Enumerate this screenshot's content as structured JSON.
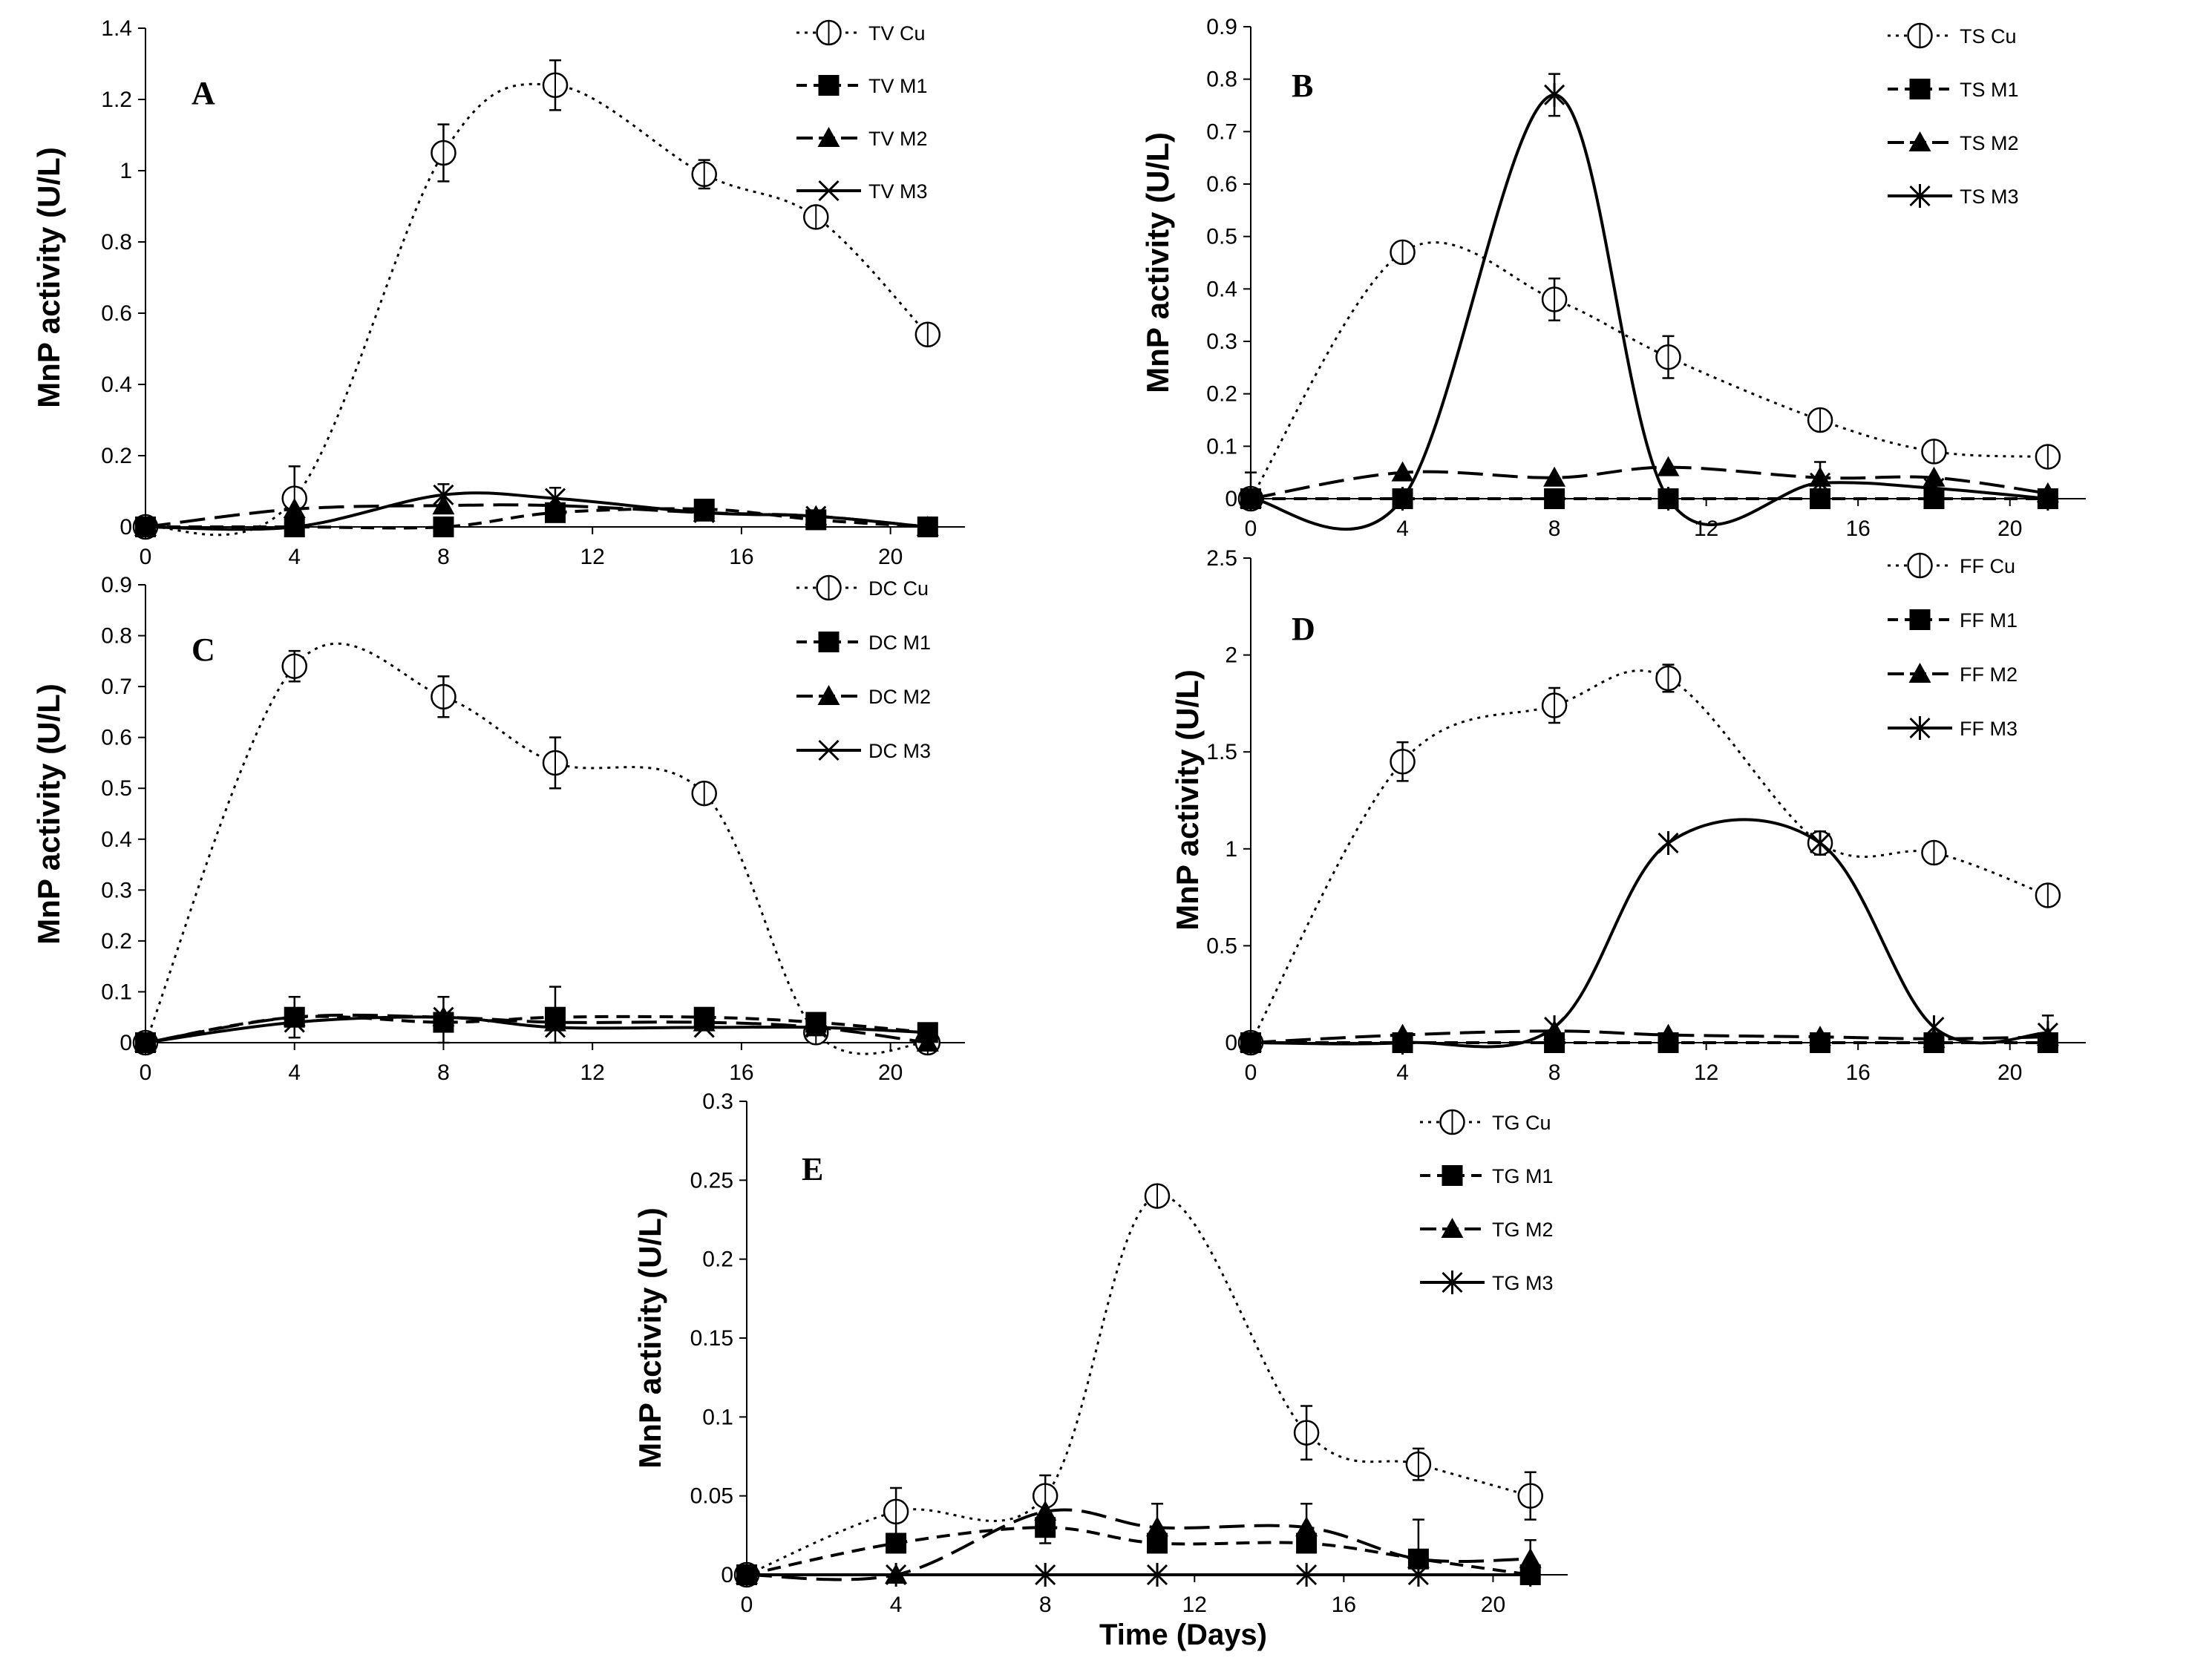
{
  "chart_data": [
    {
      "type": "line",
      "panel": "A",
      "ylabel": "MnP activity (U/L)",
      "xlabel": "",
      "xlim": [
        0,
        22
      ],
      "ylim": [
        0,
        1.4
      ],
      "xticks": [
        "0",
        "4",
        "8",
        "12",
        "16",
        "20"
      ],
      "yticks": [
        "0",
        "0.2",
        "0.4",
        "0.6",
        "0.8",
        "1",
        "1.2",
        "1.4"
      ],
      "x": [
        0,
        4,
        8,
        11,
        15,
        18,
        21
      ],
      "series": [
        {
          "name": "TV Cu",
          "style": "dotted",
          "marker": "circle",
          "values": [
            0,
            0.08,
            1.05,
            1.24,
            0.99,
            0.87,
            0.54
          ],
          "errors": [
            0,
            0.09,
            0.08,
            0.07,
            0.04,
            0.02,
            0
          ]
        },
        {
          "name": "TV M1",
          "style": "dashed",
          "marker": "square",
          "values": [
            0,
            0,
            0,
            0.04,
            0.05,
            0.02,
            0
          ],
          "errors": [
            0,
            0,
            0,
            0,
            0,
            0,
            0
          ]
        },
        {
          "name": "TV M2",
          "style": "longdash",
          "marker": "triangle",
          "values": [
            0,
            0.05,
            0.06,
            0.06,
            0.04,
            0.03,
            0
          ],
          "errors": [
            0,
            0,
            0,
            0,
            0,
            0,
            0
          ]
        },
        {
          "name": "TV M3",
          "style": "solid",
          "marker": "x",
          "values": [
            0,
            0,
            0.09,
            0.08,
            0.04,
            0.03,
            0
          ],
          "errors": [
            0,
            0,
            0.03,
            0.03,
            0,
            0,
            0
          ]
        }
      ]
    },
    {
      "type": "line",
      "panel": "B",
      "ylabel": "MnP activity (U/L)",
      "xlabel": "",
      "xlim": [
        0,
        22
      ],
      "ylim": [
        0,
        0.9
      ],
      "xticks": [
        "0",
        "4",
        "8",
        "12",
        "16",
        "20"
      ],
      "yticks": [
        "0",
        "0.1",
        "0.2",
        "0.3",
        "0.4",
        "0.5",
        "0.6",
        "0.7",
        "0.8",
        "0.9"
      ],
      "x": [
        0,
        4,
        8,
        11,
        15,
        18,
        21
      ],
      "series": [
        {
          "name": "TS Cu",
          "style": "dotted",
          "marker": "circle",
          "values": [
            0,
            0.47,
            0.38,
            0.27,
            0.15,
            0.09,
            0.08
          ],
          "errors": [
            0,
            0.01,
            0.04,
            0.04,
            0.01,
            0.01,
            0.01
          ]
        },
        {
          "name": "TS M1",
          "style": "dashed",
          "marker": "square",
          "values": [
            0,
            0,
            0,
            0,
            0,
            0,
            0
          ],
          "errors": [
            0,
            0,
            0,
            0,
            0,
            0,
            0
          ]
        },
        {
          "name": "TS M2",
          "style": "longdash",
          "marker": "triangle",
          "values": [
            0,
            0.05,
            0.04,
            0.06,
            0.04,
            0.04,
            0.01
          ],
          "errors": [
            0.05,
            0,
            0,
            0,
            0,
            0,
            0
          ]
        },
        {
          "name": "TS M3",
          "style": "solid",
          "marker": "asterisk",
          "values": [
            0,
            0,
            0.77,
            0,
            0.03,
            0.02,
            0
          ],
          "errors": [
            0,
            0,
            0.04,
            0,
            0.04,
            0,
            0
          ]
        }
      ]
    },
    {
      "type": "line",
      "panel": "C",
      "ylabel": "MnP activity (U/L)",
      "xlabel": "",
      "xlim": [
        0,
        22
      ],
      "ylim": [
        0,
        0.9
      ],
      "xticks": [
        "0",
        "4",
        "8",
        "12",
        "16",
        "20"
      ],
      "yticks": [
        "0",
        "0.1",
        "0.2",
        "0.3",
        "0.4",
        "0.5",
        "0.6",
        "0.7",
        "0.8",
        "0.9"
      ],
      "x": [
        0,
        4,
        8,
        11,
        15,
        18,
        21
      ],
      "series": [
        {
          "name": "DC Cu",
          "style": "dotted",
          "marker": "circle",
          "values": [
            0,
            0.74,
            0.68,
            0.55,
            0.49,
            0.02,
            0
          ],
          "errors": [
            0,
            0.03,
            0.04,
            0.05,
            0.02,
            0,
            0
          ]
        },
        {
          "name": "DC M1",
          "style": "dashed",
          "marker": "square",
          "values": [
            0,
            0.05,
            0.04,
            0.05,
            0.05,
            0.04,
            0.02
          ],
          "errors": [
            0,
            0.04,
            0.05,
            0.06,
            0,
            0,
            0
          ]
        },
        {
          "name": "DC M2",
          "style": "longdash",
          "marker": "triangle",
          "values": [
            0,
            0.05,
            0.05,
            0.04,
            0.04,
            0.03,
            0
          ],
          "errors": [
            0,
            0,
            0,
            0,
            0,
            0,
            0
          ]
        },
        {
          "name": "DC M3",
          "style": "solid",
          "marker": "x",
          "values": [
            0,
            0.04,
            0.05,
            0.03,
            0.03,
            0.03,
            0.02
          ],
          "errors": [
            0,
            0,
            0,
            0,
            0,
            0,
            0
          ]
        }
      ]
    },
    {
      "type": "line",
      "panel": "D",
      "ylabel": "MnP activity (U/L)",
      "xlabel": "",
      "xlim": [
        0,
        22
      ],
      "ylim": [
        0,
        2.5
      ],
      "xticks": [
        "0",
        "4",
        "8",
        "12",
        "16",
        "20"
      ],
      "yticks": [
        "0",
        "0.5",
        "1",
        "1.5",
        "2",
        "2.5"
      ],
      "x": [
        0,
        4,
        8,
        11,
        15,
        18,
        21
      ],
      "series": [
        {
          "name": "FF Cu",
          "style": "dotted",
          "marker": "circle",
          "values": [
            0,
            1.45,
            1.74,
            1.88,
            1.03,
            0.98,
            0.76
          ],
          "errors": [
            0,
            0.1,
            0.09,
            0.07,
            0.06,
            0.04,
            0
          ]
        },
        {
          "name": "FF M1",
          "style": "dashed",
          "marker": "square",
          "values": [
            0,
            0,
            0,
            0,
            0,
            0,
            0
          ],
          "errors": [
            0,
            0,
            0,
            0,
            0,
            0,
            0
          ]
        },
        {
          "name": "FF M2",
          "style": "longdash",
          "marker": "triangle",
          "values": [
            0,
            0.04,
            0.06,
            0.04,
            0.03,
            0.02,
            0.03
          ],
          "errors": [
            0,
            0,
            0,
            0,
            0,
            0,
            0
          ]
        },
        {
          "name": "FF M3",
          "style": "solid",
          "marker": "asterisk",
          "values": [
            0,
            0,
            0.08,
            1.03,
            1.03,
            0.08,
            0.05
          ],
          "errors": [
            0,
            0,
            0,
            0,
            0.06,
            0,
            0.09
          ]
        }
      ]
    },
    {
      "type": "line",
      "panel": "E",
      "ylabel": "MnP activity (U/L)",
      "xlabel": "Time (Days)",
      "xlim": [
        0,
        22
      ],
      "ylim": [
        0,
        0.3
      ],
      "xticks": [
        "0",
        "4",
        "8",
        "12",
        "16",
        "20"
      ],
      "yticks": [
        "0",
        "0.05",
        "0.1",
        "0.15",
        "0.2",
        "0.25",
        "0.3"
      ],
      "x": [
        0,
        4,
        8,
        11,
        15,
        18,
        21
      ],
      "series": [
        {
          "name": "TG Cu",
          "style": "dotted",
          "marker": "circle",
          "values": [
            0,
            0.04,
            0.05,
            0.24,
            0.09,
            0.07,
            0.05
          ],
          "errors": [
            0,
            0.015,
            0.013,
            0.003,
            0.017,
            0.01,
            0.015
          ]
        },
        {
          "name": "TG M1",
          "style": "dashed",
          "marker": "square",
          "values": [
            0,
            0.02,
            0.03,
            0.02,
            0.02,
            0.01,
            0
          ],
          "errors": [
            0,
            0,
            0.01,
            0,
            0,
            0.025,
            0
          ]
        },
        {
          "name": "TG M2",
          "style": "longdash",
          "marker": "triangle",
          "values": [
            0,
            0,
            0.04,
            0.03,
            0.03,
            0.01,
            0.01
          ],
          "errors": [
            0,
            0,
            0,
            0.015,
            0.015,
            0,
            0.012
          ]
        },
        {
          "name": "TG M3",
          "style": "solid",
          "marker": "asterisk",
          "values": [
            0,
            0,
            0,
            0,
            0,
            0,
            0
          ],
          "errors": [
            0,
            0,
            0,
            0,
            0,
            0,
            0
          ]
        }
      ]
    }
  ]
}
